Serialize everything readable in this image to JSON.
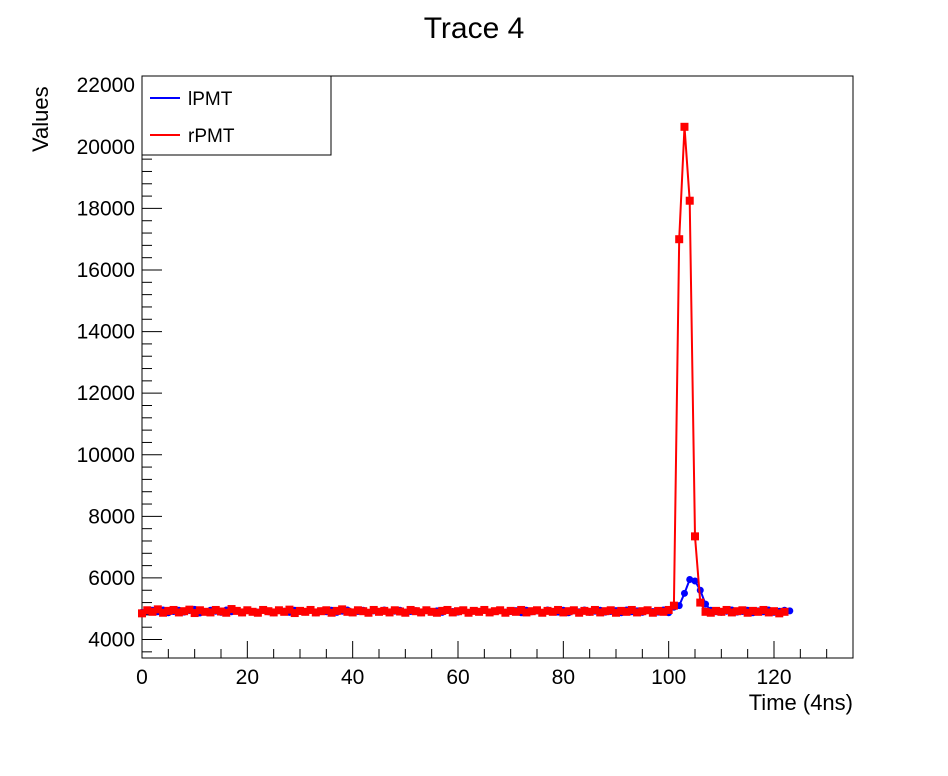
{
  "chart_data": {
    "type": "line",
    "title": "Trace 4",
    "xlabel": "Time (4ns)",
    "ylabel": "Values",
    "xlim": [
      0,
      135
    ],
    "ylim": [
      3400,
      22300
    ],
    "x_ticks": [
      0,
      20,
      40,
      60,
      80,
      100,
      120
    ],
    "y_ticks": [
      4000,
      6000,
      8000,
      10000,
      12000,
      14000,
      16000,
      18000,
      20000,
      22000
    ],
    "x_tick_labels": [
      "0",
      "20",
      "40",
      "60",
      "80",
      "100",
      "120"
    ],
    "y_tick_labels": [
      "4000",
      "6000",
      "8000",
      "10000",
      "12000",
      "14000",
      "16000",
      "18000",
      "20000",
      "22000"
    ],
    "grid": false,
    "legend_position": "top-left",
    "legend": [
      "lPMT",
      "rPMT"
    ],
    "series": [
      {
        "name": "lPMT",
        "color": "#0000ff",
        "marker": "circle",
        "x_start": 0,
        "x_step": 1,
        "values": [
          4880,
          4920,
          4950,
          4900,
          4960,
          4870,
          4910,
          4950,
          4890,
          4940,
          4980,
          4860,
          4900,
          4950,
          4920,
          4880,
          4960,
          4900,
          4930,
          4870,
          4950,
          4910,
          4890,
          4960,
          4900,
          4870,
          4940,
          4920,
          4880,
          4950,
          4910,
          4890,
          4960,
          4870,
          4930,
          4900,
          4950,
          4880,
          4920,
          4960,
          4890,
          4910,
          4950,
          4870,
          4930,
          4900,
          4960,
          4880,
          4920,
          4950,
          4890,
          4910,
          4940,
          4870,
          4960,
          4900,
          4930,
          4880,
          4950,
          4910,
          4890,
          4960,
          4870,
          4930,
          4900,
          4950,
          4880,
          4920,
          4960,
          4890,
          4910,
          4940,
          4870,
          4950,
          4900,
          4930,
          4880,
          4960,
          4910,
          4890,
          4950,
          4870,
          4930,
          4900,
          4960,
          4880,
          4920,
          4950,
          4890,
          4910,
          4940,
          4870,
          4960,
          4900,
          4930,
          4880,
          4950,
          4910,
          4890,
          4960,
          4870,
          5050,
          5100,
          5500,
          5950,
          5900,
          5600,
          5150,
          4950,
          4900,
          4880,
          4920,
          4960,
          4890,
          4910,
          4950,
          4870,
          4930,
          4900,
          4960,
          4880,
          4920,
          4950,
          4930
        ]
      },
      {
        "name": "rPMT",
        "color": "#ff0000",
        "marker": "square",
        "x_start": 0,
        "x_step": 1,
        "values": [
          4850,
          4950,
          4900,
          4980,
          4870,
          4930,
          4960,
          4880,
          4920,
          4970,
          4860,
          4950,
          4900,
          4880,
          4960,
          4910,
          4870,
          4990,
          4930,
          4880,
          4950,
          4900,
          4870,
          4960,
          4920,
          4880,
          4950,
          4900,
          4970,
          4860,
          4930,
          4900,
          4960,
          4880,
          4920,
          4950,
          4870,
          4930,
          4980,
          4900,
          4880,
          4950,
          4920,
          4870,
          4960,
          4900,
          4930,
          4880,
          4950,
          4910,
          4870,
          4960,
          4920,
          4880,
          4950,
          4900,
          4870,
          4930,
          4960,
          4880,
          4920,
          4950,
          4870,
          4930,
          4900,
          4960,
          4880,
          4920,
          4950,
          4870,
          4930,
          4900,
          4960,
          4880,
          4920,
          4950,
          4870,
          4930,
          4900,
          4960,
          4880,
          4920,
          4950,
          4870,
          4930,
          4900,
          4960,
          4880,
          4920,
          4950,
          4870,
          4930,
          4900,
          4960,
          4880,
          4920,
          4950,
          4870,
          4930,
          4900,
          4960,
          5100,
          17000,
          20650,
          18250,
          7350,
          5200,
          4900,
          4870,
          4930,
          4900,
          4960,
          4880,
          4920,
          4950,
          4870,
          4930,
          4900,
          4960,
          4880,
          4920,
          4850,
          4900
        ]
      }
    ]
  }
}
